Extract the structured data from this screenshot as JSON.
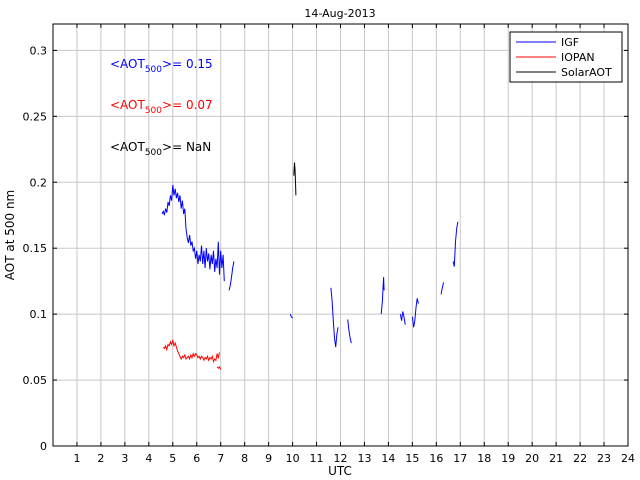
{
  "chart_data": {
    "type": "line",
    "title": "14-Aug-2013",
    "xlabel": "UTC",
    "ylabel": "AOT at 500 nm",
    "xlim": [
      0,
      24
    ],
    "ylim": [
      0,
      0.32
    ],
    "xticks": [
      1,
      2,
      3,
      4,
      5,
      6,
      7,
      8,
      9,
      10,
      11,
      12,
      13,
      14,
      15,
      16,
      17,
      18,
      19,
      20,
      21,
      22,
      23,
      24
    ],
    "yticks": [
      0,
      0.05,
      0.1,
      0.15,
      0.2,
      0.25,
      0.3
    ],
    "ytick_labels": [
      "0",
      "0.05",
      "0.1",
      "0.15",
      "0.2",
      "0.25",
      "0.3"
    ],
    "grid": true,
    "legend_position": "top-right",
    "colors": {
      "IGF": "#0000ff",
      "IOPAN": "#ff0000",
      "SolarAOT": "#000000"
    },
    "series": [
      {
        "name": "IGF",
        "color": "#0000ff",
        "segments": [
          [
            [
              4.55,
              0.176
            ],
            [
              4.6,
              0.178
            ],
            [
              4.65,
              0.175
            ],
            [
              4.7,
              0.18
            ],
            [
              4.75,
              0.177
            ],
            [
              4.8,
              0.185
            ],
            [
              4.85,
              0.182
            ],
            [
              4.9,
              0.19
            ],
            [
              4.95,
              0.186
            ],
            [
              5.0,
              0.198
            ],
            [
              5.05,
              0.19
            ],
            [
              5.1,
              0.195
            ],
            [
              5.15,
              0.188
            ],
            [
              5.2,
              0.192
            ],
            [
              5.25,
              0.185
            ],
            [
              5.3,
              0.19
            ],
            [
              5.35,
              0.18
            ],
            [
              5.4,
              0.186
            ],
            [
              5.45,
              0.176
            ],
            [
              5.5,
              0.18
            ],
            [
              5.55,
              0.165
            ],
            [
              5.6,
              0.158
            ],
            [
              5.65,
              0.154
            ],
            [
              5.7,
              0.16
            ],
            [
              5.75,
              0.152
            ],
            [
              5.8,
              0.155
            ],
            [
              5.85,
              0.148
            ],
            [
              5.9,
              0.15
            ],
            [
              5.95,
              0.142
            ],
            [
              6.0,
              0.148
            ],
            [
              6.05,
              0.138
            ],
            [
              6.1,
              0.145
            ],
            [
              6.15,
              0.14
            ],
            [
              6.2,
              0.152
            ],
            [
              6.25,
              0.138
            ],
            [
              6.3,
              0.148
            ],
            [
              6.35,
              0.135
            ],
            [
              6.4,
              0.15
            ],
            [
              6.45,
              0.14
            ],
            [
              6.5,
              0.146
            ],
            [
              6.55,
              0.134
            ],
            [
              6.6,
              0.145
            ],
            [
              6.65,
              0.138
            ],
            [
              6.7,
              0.148
            ],
            [
              6.75,
              0.132
            ],
            [
              6.8,
              0.142
            ],
            [
              6.85,
              0.135
            ],
            [
              6.9,
              0.155
            ],
            [
              6.95,
              0.13
            ],
            [
              7.0,
              0.148
            ],
            [
              7.05,
              0.135
            ],
            [
              7.1,
              0.145
            ],
            [
              7.15,
              0.125
            ]
          ],
          [
            [
              7.35,
              0.118
            ],
            [
              7.4,
              0.122
            ],
            [
              7.45,
              0.128
            ],
            [
              7.5,
              0.135
            ],
            [
              7.55,
              0.14
            ]
          ],
          [
            [
              9.9,
              0.1
            ],
            [
              9.95,
              0.098
            ],
            [
              10.0,
              0.097
            ]
          ],
          [
            [
              11.6,
              0.12
            ],
            [
              11.65,
              0.11
            ],
            [
              11.7,
              0.095
            ],
            [
              11.75,
              0.082
            ],
            [
              11.8,
              0.075
            ],
            [
              11.85,
              0.085
            ],
            [
              11.9,
              0.09
            ]
          ],
          [
            [
              12.3,
              0.096
            ],
            [
              12.35,
              0.088
            ],
            [
              12.4,
              0.082
            ],
            [
              12.45,
              0.078
            ]
          ],
          [
            [
              13.7,
              0.1
            ],
            [
              13.75,
              0.11
            ],
            [
              13.8,
              0.128
            ],
            [
              13.82,
              0.118
            ]
          ],
          [
            [
              14.5,
              0.1
            ],
            [
              14.55,
              0.095
            ],
            [
              14.6,
              0.102
            ],
            [
              14.65,
              0.098
            ],
            [
              14.7,
              0.092
            ]
          ],
          [
            [
              15.0,
              0.098
            ],
            [
              15.05,
              0.09
            ],
            [
              15.1,
              0.095
            ],
            [
              15.15,
              0.105
            ],
            [
              15.2,
              0.112
            ],
            [
              15.25,
              0.108
            ]
          ],
          [
            [
              16.2,
              0.115
            ],
            [
              16.25,
              0.12
            ],
            [
              16.3,
              0.124
            ]
          ],
          [
            [
              16.7,
              0.14
            ],
            [
              16.75,
              0.136
            ],
            [
              16.8,
              0.155
            ],
            [
              16.85,
              0.165
            ],
            [
              16.9,
              0.17
            ]
          ]
        ]
      },
      {
        "name": "IOPAN",
        "color": "#ff0000",
        "segments": [
          [
            [
              4.6,
              0.075
            ],
            [
              4.65,
              0.074
            ],
            [
              4.7,
              0.076
            ],
            [
              4.75,
              0.073
            ],
            [
              4.8,
              0.077
            ],
            [
              4.85,
              0.076
            ],
            [
              4.9,
              0.079
            ],
            [
              4.95,
              0.077
            ],
            [
              5.0,
              0.08
            ],
            [
              5.05,
              0.076
            ],
            [
              5.1,
              0.078
            ],
            [
              5.15,
              0.075
            ],
            [
              5.2,
              0.072
            ],
            [
              5.25,
              0.07
            ],
            [
              5.3,
              0.068
            ],
            [
              5.35,
              0.066
            ],
            [
              5.4,
              0.068
            ],
            [
              5.45,
              0.067
            ],
            [
              5.5,
              0.069
            ],
            [
              5.55,
              0.066
            ],
            [
              5.6,
              0.067
            ],
            [
              5.65,
              0.068
            ],
            [
              5.7,
              0.066
            ],
            [
              5.75,
              0.069
            ],
            [
              5.8,
              0.067
            ],
            [
              5.85,
              0.07
            ],
            [
              5.9,
              0.068
            ],
            [
              5.95,
              0.07
            ],
            [
              6.0,
              0.069
            ],
            [
              6.05,
              0.067
            ],
            [
              6.1,
              0.068
            ],
            [
              6.15,
              0.066
            ],
            [
              6.2,
              0.068
            ],
            [
              6.25,
              0.067
            ],
            [
              6.3,
              0.065
            ],
            [
              6.35,
              0.067
            ],
            [
              6.4,
              0.066
            ],
            [
              6.45,
              0.068
            ],
            [
              6.5,
              0.065
            ],
            [
              6.55,
              0.067
            ],
            [
              6.6,
              0.066
            ],
            [
              6.65,
              0.068
            ],
            [
              6.7,
              0.064
            ],
            [
              6.75,
              0.066
            ],
            [
              6.8,
              0.065
            ],
            [
              6.85,
              0.07
            ],
            [
              6.9,
              0.067
            ],
            [
              6.95,
              0.071
            ]
          ],
          [
            [
              6.85,
              0.06
            ],
            [
              6.9,
              0.059
            ],
            [
              6.95,
              0.06
            ],
            [
              7.0,
              0.058
            ]
          ]
        ]
      },
      {
        "name": "SolarAOT",
        "color": "#000000",
        "segments": [
          [
            [
              10.05,
              0.205
            ],
            [
              10.08,
              0.215
            ],
            [
              10.1,
              0.21
            ],
            [
              10.12,
              0.2
            ],
            [
              10.14,
              0.19
            ]
          ]
        ]
      }
    ],
    "annotations": [
      {
        "prefix": "<AOT",
        "sub": "500",
        "suffix": ">= 0.15",
        "color": "#0000ff"
      },
      {
        "prefix": "<AOT",
        "sub": "500",
        "suffix": ">= 0.07",
        "color": "#ff0000"
      },
      {
        "prefix": "<AOT",
        "sub": "500",
        "suffix": ">=  NaN",
        "color": "#000000"
      }
    ]
  }
}
